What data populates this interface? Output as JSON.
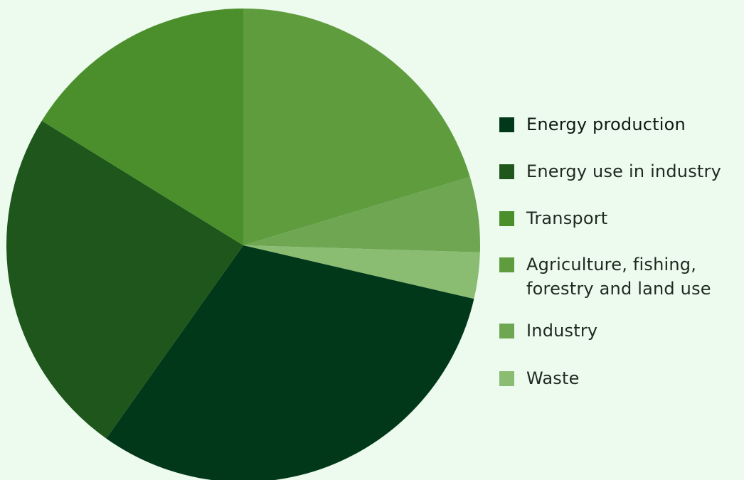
{
  "chart_data": {
    "type": "pie",
    "title": "",
    "start_angle_deg": 0,
    "direction": "clockwise",
    "slices": [
      {
        "label": "Agriculture, fishing,\nforestry and land use",
        "value": 20.6,
        "color": "#5e9c3e"
      },
      {
        "label": "Industry",
        "value": 5.2,
        "color": "#6ea652"
      },
      {
        "label": "Waste",
        "value": 3.2,
        "color": "#8abc72"
      },
      {
        "label": "Energy production",
        "value": 31.6,
        "color": "#02381a"
      },
      {
        "label": "Energy use in industry",
        "value": 24.3,
        "color": "#1e561b"
      },
      {
        "label": "Transport",
        "value": 16.4,
        "color": "#4a8f2b"
      }
    ],
    "legend": {
      "placement": "right",
      "items": [
        {
          "label": "Energy production",
          "color": "#02381a"
        },
        {
          "label": "Energy use in industry",
          "color": "#1e561b"
        },
        {
          "label": "Transport",
          "color": "#4a8f2b"
        },
        {
          "label": "Agriculture, fishing,\nforestry and land use",
          "color": "#5e9c3e"
        },
        {
          "label": "Industry",
          "color": "#6ea652"
        },
        {
          "label": "Waste",
          "color": "#8abc72"
        }
      ]
    }
  },
  "colors": {
    "background": "#edfaee"
  }
}
